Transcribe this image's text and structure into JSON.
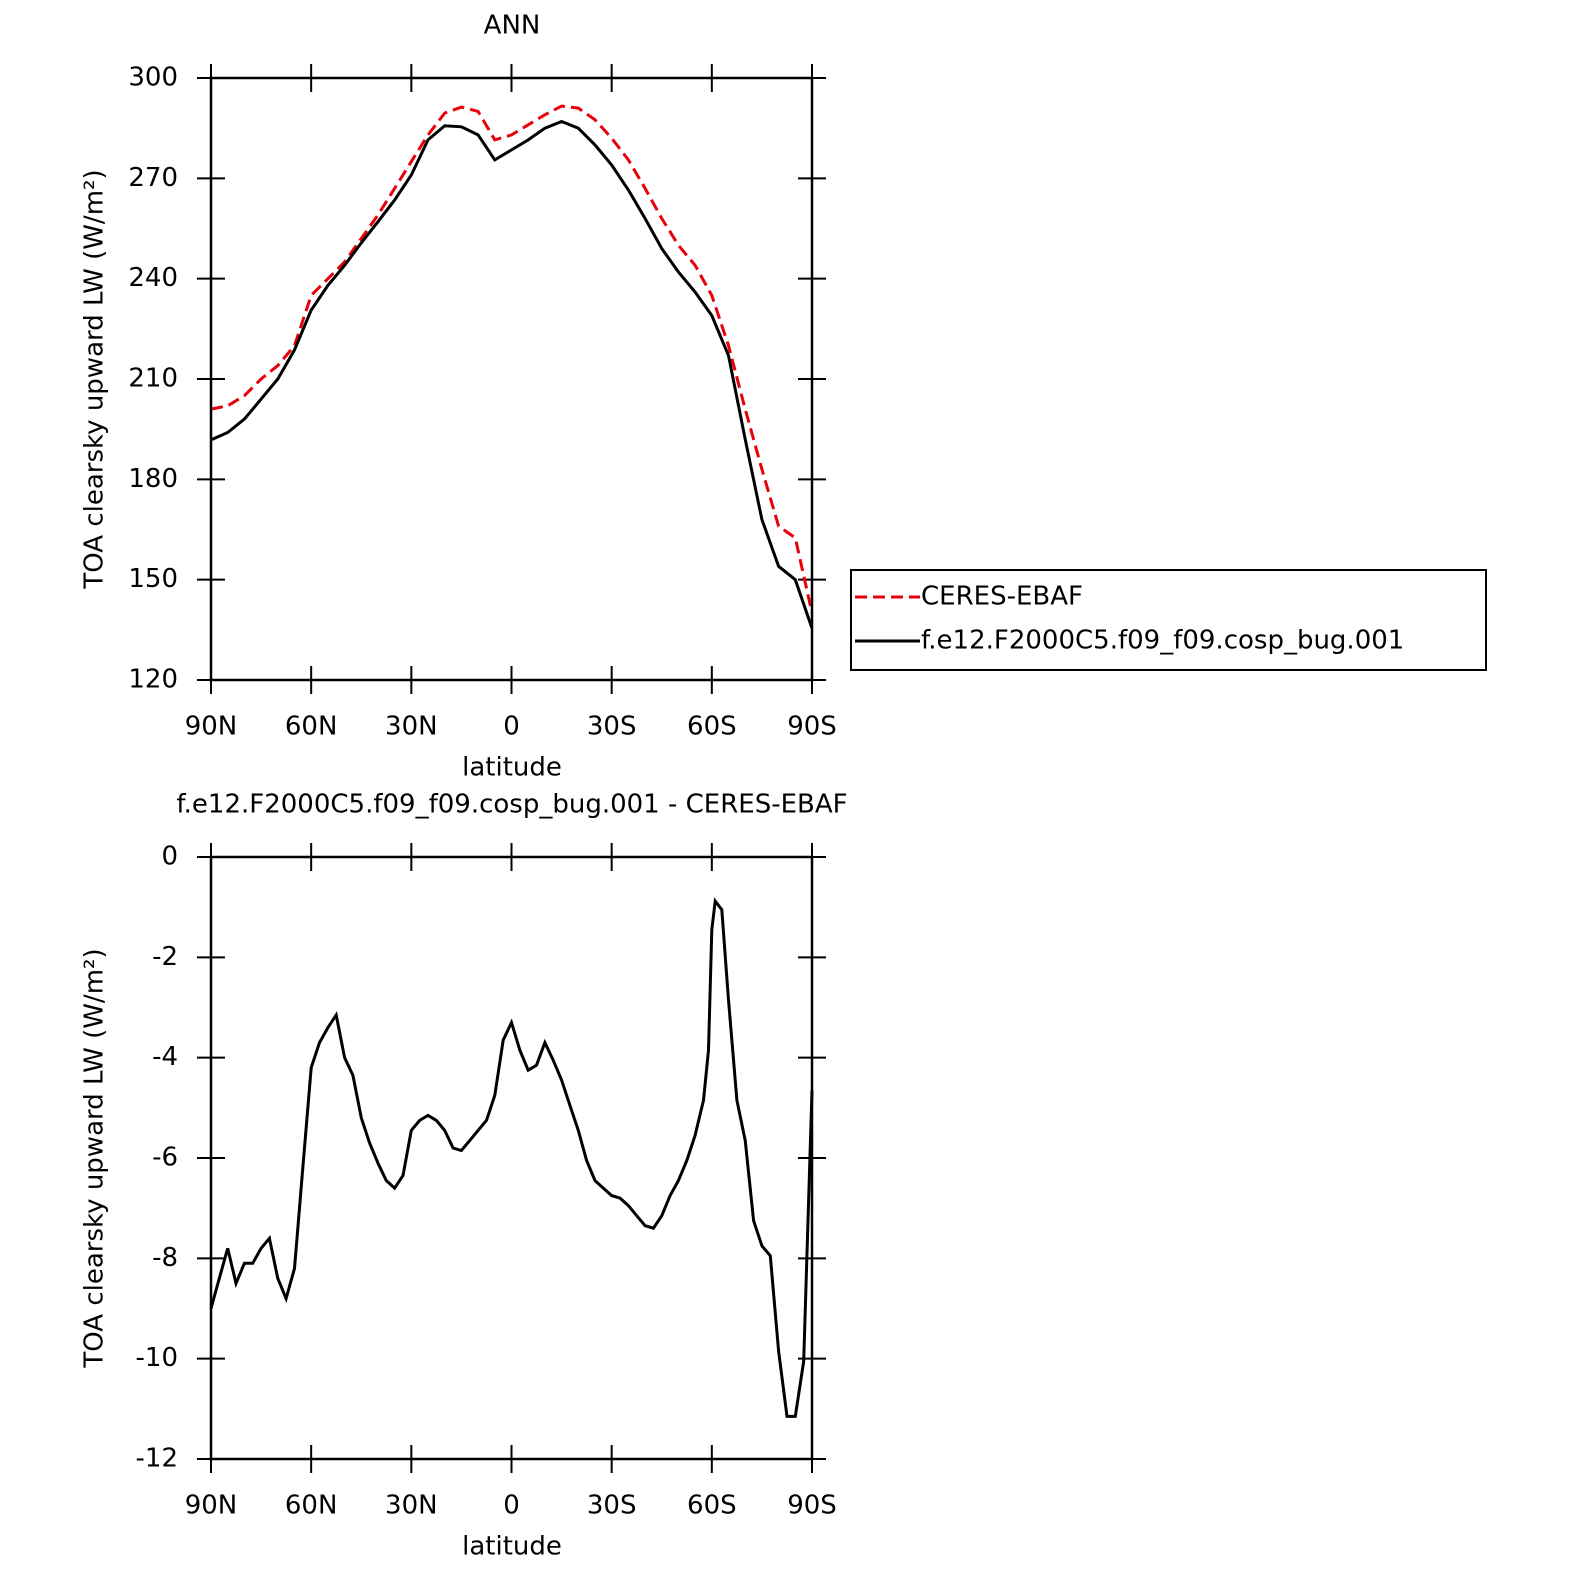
{
  "chart_data": [
    {
      "type": "line",
      "title": "ANN",
      "xlabel": "latitude",
      "ylabel": "TOA clearsky upward LW (W/m²)",
      "x": [
        90,
        85,
        80,
        75,
        70,
        65,
        60,
        55,
        50,
        45,
        40,
        35,
        30,
        25,
        20,
        15,
        10,
        5,
        0,
        -5,
        -10,
        -15,
        -20,
        -25,
        -30,
        -35,
        -40,
        -45,
        -50,
        -55,
        -60,
        -65,
        -70,
        -75,
        -80,
        -85,
        -90
      ],
      "series": [
        {
          "name": "CERES-EBAF",
          "color": "#e8000b",
          "line_style": "dashed",
          "values": [
            201,
            202,
            205,
            210,
            214,
            220,
            235,
            240,
            245,
            252,
            259,
            267,
            275,
            283,
            289.5,
            291.3,
            290,
            281.5,
            283,
            286,
            289,
            291.6,
            291,
            287.5,
            282,
            275.5,
            267,
            258,
            250,
            244,
            235,
            220,
            201,
            183,
            166,
            162.5,
            140
          ]
        },
        {
          "name": "f.e12.F2000C5.f09_f09.cosp_bug.001",
          "color": "#000000",
          "line_style": "solid",
          "values": [
            191.8,
            194,
            198,
            204,
            210,
            218.7,
            230.6,
            238,
            244,
            250.7,
            257,
            263.5,
            271,
            281.5,
            285.7,
            285.4,
            283,
            275.5,
            278.5,
            281.5,
            285,
            287,
            285,
            280,
            274,
            266.5,
            258,
            249,
            242,
            236,
            229,
            217,
            192,
            168,
            154,
            150,
            135.5
          ]
        }
      ],
      "xlim": [
        90,
        -90
      ],
      "xticks": [
        {
          "value": 90,
          "label": "90N"
        },
        {
          "value": 60,
          "label": "60N"
        },
        {
          "value": 30,
          "label": "30N"
        },
        0,
        {
          "value": -30,
          "label": "30S"
        },
        {
          "value": -60,
          "label": "60S"
        },
        {
          "value": -90,
          "label": "90S"
        }
      ],
      "ylim": [
        120,
        300
      ],
      "yticks": [
        120,
        150,
        180,
        210,
        240,
        270,
        300
      ],
      "legend": "right"
    },
    {
      "type": "line",
      "title": "f.e12.F2000C5.f09_f09.cosp_bug.001 - CERES-EBAF",
      "xlabel": "latitude",
      "ylabel": "TOA clearsky upward LW (W/m²)",
      "x": [
        90,
        87.5,
        85,
        82.5,
        80,
        77.5,
        75,
        72.5,
        70,
        67.5,
        65,
        62.5,
        60,
        57.5,
        55,
        52.5,
        50,
        47.5,
        45,
        42.5,
        40,
        37.5,
        35,
        32.5,
        30,
        27.5,
        25,
        22.5,
        20,
        17.5,
        15,
        12.5,
        10,
        7.5,
        5,
        2.5,
        0,
        -2.5,
        -5,
        -7.5,
        -10,
        -12.5,
        -15,
        -17.5,
        -20,
        -22.5,
        -25,
        -27.5,
        -30,
        -32.5,
        -35,
        -37.5,
        -40,
        -42.5,
        -45,
        -47.5,
        -50,
        -52.5,
        -55,
        -57.5,
        -59,
        -60,
        -61,
        -63,
        -65,
        -67.5,
        -70,
        -72.5,
        -75,
        -77.5,
        -80,
        -82.5,
        -85,
        -87.5,
        -90
      ],
      "series": [
        {
          "color": "#000000",
          "line_style": "solid",
          "values": [
            -9.0,
            -8.4,
            -7.8,
            -8.5,
            -8.1,
            -8.1,
            -7.8,
            -7.6,
            -8.4,
            -8.8,
            -8.2,
            -6.2,
            -4.2,
            -3.7,
            -3.4,
            -3.15,
            -4.0,
            -4.35,
            -5.2,
            -5.7,
            -6.1,
            -6.45,
            -6.6,
            -6.35,
            -5.45,
            -5.25,
            -5.15,
            -5.25,
            -5.45,
            -5.8,
            -5.85,
            -5.65,
            -5.45,
            -5.25,
            -4.75,
            -3.65,
            -3.3,
            -3.85,
            -4.25,
            -4.15,
            -3.7,
            -4.05,
            -4.45,
            -4.95,
            -5.45,
            -6.05,
            -6.45,
            -6.6,
            -6.75,
            -6.8,
            -6.95,
            -7.15,
            -7.35,
            -7.4,
            -7.15,
            -6.75,
            -6.45,
            -6.05,
            -5.55,
            -4.85,
            -3.85,
            -1.45,
            -0.88,
            -1.05,
            -2.85,
            -4.85,
            -5.65,
            -7.25,
            -7.75,
            -7.95,
            -9.85,
            -11.15,
            -11.15,
            -10.05,
            -4.65
          ]
        }
      ],
      "xlim": [
        90,
        -90
      ],
      "xticks": [
        {
          "value": 90,
          "label": "90N"
        },
        {
          "value": 60,
          "label": "60N"
        },
        {
          "value": 30,
          "label": "30N"
        },
        0,
        {
          "value": -30,
          "label": "30S"
        },
        {
          "value": -60,
          "label": "60S"
        },
        {
          "value": -90,
          "label": "90S"
        }
      ],
      "ylim": [
        -12,
        0
      ],
      "yticks": [
        -12,
        -10,
        -8,
        -6,
        -4,
        -2,
        0
      ]
    }
  ]
}
